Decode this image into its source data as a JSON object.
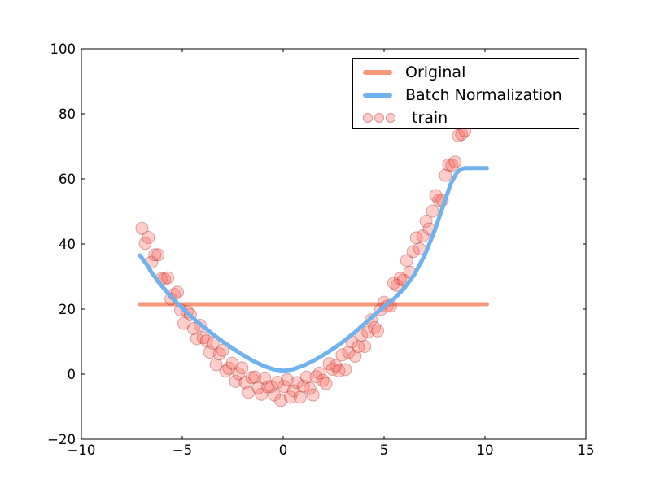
{
  "window": {
    "background": "#ffffff",
    "plot_background": "#ffffff",
    "spine_color": "#000000"
  },
  "legend": {
    "items": [
      {
        "label": "Original",
        "swatch": "line",
        "color": "#FA9778"
      },
      {
        "label": "Batch Normalization",
        "swatch": "line",
        "color": "#6FB2EE"
      },
      {
        "label": "train",
        "swatch": "dots",
        "fill": "rgba(255,92,82,0.30)",
        "edge": "rgba(160,45,40,0.38)"
      }
    ]
  },
  "chart_data": {
    "type": "line",
    "title": "",
    "xlabel": "",
    "ylabel": "",
    "xlim": [
      -10,
      15
    ],
    "ylim": [
      -20,
      100
    ],
    "xticks": [
      -10,
      -5,
      0,
      5,
      10,
      15
    ],
    "yticks": [
      -20,
      0,
      20,
      40,
      60,
      80,
      100
    ],
    "grid": false,
    "tick_direction": "in",
    "legend_position": "upper right",
    "series": [
      {
        "name": "Original",
        "type": "line",
        "color": "#FA9778",
        "linewidth": 5,
        "points": [
          [
            -7.1,
            21.5
          ],
          [
            10.1,
            21.5
          ]
        ]
      },
      {
        "name": "train",
        "type": "scatter",
        "marker_radius": 7.5,
        "fill": "rgba(255,92,82,0.30)",
        "edge": "rgba(160,45,40,0.38)",
        "points": [
          [
            -7.0,
            44.8
          ],
          [
            -6.84,
            40.2
          ],
          [
            -6.68,
            42.0
          ],
          [
            -6.52,
            34.4
          ],
          [
            -6.36,
            36.7
          ],
          [
            -6.2,
            36.7
          ],
          [
            -6.04,
            29.3
          ],
          [
            -5.88,
            29.2
          ],
          [
            -5.72,
            29.6
          ],
          [
            -5.56,
            23.1
          ],
          [
            -5.4,
            24.5
          ],
          [
            -5.24,
            25.2
          ],
          [
            -5.08,
            19.7
          ],
          [
            -4.92,
            15.6
          ],
          [
            -4.76,
            19.2
          ],
          [
            -4.6,
            18.3
          ],
          [
            -4.44,
            14.0
          ],
          [
            -4.28,
            10.9
          ],
          [
            -4.12,
            15.0
          ],
          [
            -3.96,
            11.2
          ],
          [
            -3.8,
            10.2
          ],
          [
            -3.64,
            6.7
          ],
          [
            -3.48,
            9.5
          ],
          [
            -3.32,
            2.9
          ],
          [
            -3.16,
            6.2
          ],
          [
            -3.0,
            7.3
          ],
          [
            -2.84,
            0.9
          ],
          [
            -2.68,
            1.8
          ],
          [
            -2.52,
            3.3
          ],
          [
            -2.36,
            -2.2
          ],
          [
            -2.2,
            0.1
          ],
          [
            -2.04,
            1.9
          ],
          [
            -1.88,
            -2.6
          ],
          [
            -1.72,
            -5.6
          ],
          [
            -1.56,
            -1.1
          ],
          [
            -1.4,
            -0.9
          ],
          [
            -1.24,
            -4.2
          ],
          [
            -1.08,
            -6.2
          ],
          [
            -0.92,
            -1.2
          ],
          [
            -0.76,
            -3.9
          ],
          [
            -0.6,
            -3.8
          ],
          [
            -0.44,
            -6.4
          ],
          [
            -0.28,
            -2.5
          ],
          [
            -0.12,
            -8.1
          ],
          [
            0.04,
            -3.8
          ],
          [
            0.2,
            -1.7
          ],
          [
            0.36,
            -7.1
          ],
          [
            0.52,
            -5.1
          ],
          [
            0.68,
            -2.6
          ],
          [
            0.84,
            -7.1
          ],
          [
            1.0,
            -3.7
          ],
          [
            1.16,
            -0.9
          ],
          [
            1.32,
            -4.4
          ],
          [
            1.48,
            -6.4
          ],
          [
            1.64,
            -0.8
          ],
          [
            1.8,
            0.3
          ],
          [
            1.96,
            -1.9
          ],
          [
            2.12,
            -2.9
          ],
          [
            2.28,
            3.2
          ],
          [
            2.44,
            1.5
          ],
          [
            2.6,
            2.6
          ],
          [
            2.76,
            1.0
          ],
          [
            2.92,
            5.9
          ],
          [
            3.08,
            1.4
          ],
          [
            3.24,
            6.7
          ],
          [
            3.4,
            9.9
          ],
          [
            3.56,
            5.5
          ],
          [
            3.72,
            8.4
          ],
          [
            3.88,
            12.0
          ],
          [
            4.04,
            8.5
          ],
          [
            4.2,
            12.9
          ],
          [
            4.36,
            16.7
          ],
          [
            4.52,
            14.3
          ],
          [
            4.68,
            13.3
          ],
          [
            4.84,
            19.9
          ],
          [
            5.0,
            22.1
          ],
          [
            5.16,
            20.9
          ],
          [
            5.32,
            20.9
          ],
          [
            5.48,
            28.0
          ],
          [
            5.64,
            27.3
          ],
          [
            5.8,
            29.4
          ],
          [
            5.96,
            28.9
          ],
          [
            6.12,
            34.9
          ],
          [
            6.28,
            31.3
          ],
          [
            6.44,
            37.7
          ],
          [
            6.6,
            41.9
          ],
          [
            6.76,
            38.5
          ],
          [
            6.92,
            42.5
          ],
          [
            7.08,
            47.0
          ],
          [
            7.24,
            44.6
          ],
          [
            7.4,
            50.1
          ],
          [
            7.56,
            54.9
          ],
          [
            7.72,
            53.5
          ],
          [
            7.88,
            53.5
          ],
          [
            8.04,
            61.1
          ],
          [
            8.2,
            64.3
          ],
          [
            8.36,
            64.2
          ],
          [
            8.52,
            65.2
          ],
          [
            8.68,
            73.3
          ],
          [
            8.84,
            73.7
          ],
          [
            9.0,
            74.8
          ]
        ]
      },
      {
        "name": "Batch Normalization",
        "type": "line",
        "color": "#6FB2EE",
        "linewidth": 5,
        "points": [
          [
            -7.1,
            36.5
          ],
          [
            -6.75,
            33.6
          ],
          [
            -6.5,
            31.0
          ],
          [
            -6.0,
            27.0
          ],
          [
            -5.5,
            23.4
          ],
          [
            -5.0,
            20.3
          ],
          [
            -4.5,
            17.4
          ],
          [
            -4.0,
            14.8
          ],
          [
            -3.5,
            12.3
          ],
          [
            -3.0,
            10.0
          ],
          [
            -2.5,
            7.9
          ],
          [
            -2.0,
            5.9
          ],
          [
            -1.5,
            4.1
          ],
          [
            -1.0,
            2.6
          ],
          [
            -0.5,
            1.5
          ],
          [
            0.0,
            1.0
          ],
          [
            0.5,
            1.5
          ],
          [
            1.0,
            2.6
          ],
          [
            1.5,
            4.1
          ],
          [
            2.0,
            5.9
          ],
          [
            2.5,
            7.9
          ],
          [
            3.0,
            10.1
          ],
          [
            3.5,
            12.6
          ],
          [
            4.0,
            15.3
          ],
          [
            4.5,
            18.1
          ],
          [
            5.0,
            20.8
          ],
          [
            5.5,
            23.2
          ],
          [
            6.0,
            26.4
          ],
          [
            6.5,
            30.6
          ],
          [
            7.0,
            36.4
          ],
          [
            7.5,
            44.0
          ],
          [
            8.0,
            53.0
          ],
          [
            8.3,
            58.5
          ],
          [
            8.6,
            61.9
          ],
          [
            8.8,
            63.0
          ],
          [
            9.0,
            63.3
          ],
          [
            9.5,
            63.3
          ],
          [
            10.1,
            63.3
          ]
        ]
      }
    ]
  }
}
